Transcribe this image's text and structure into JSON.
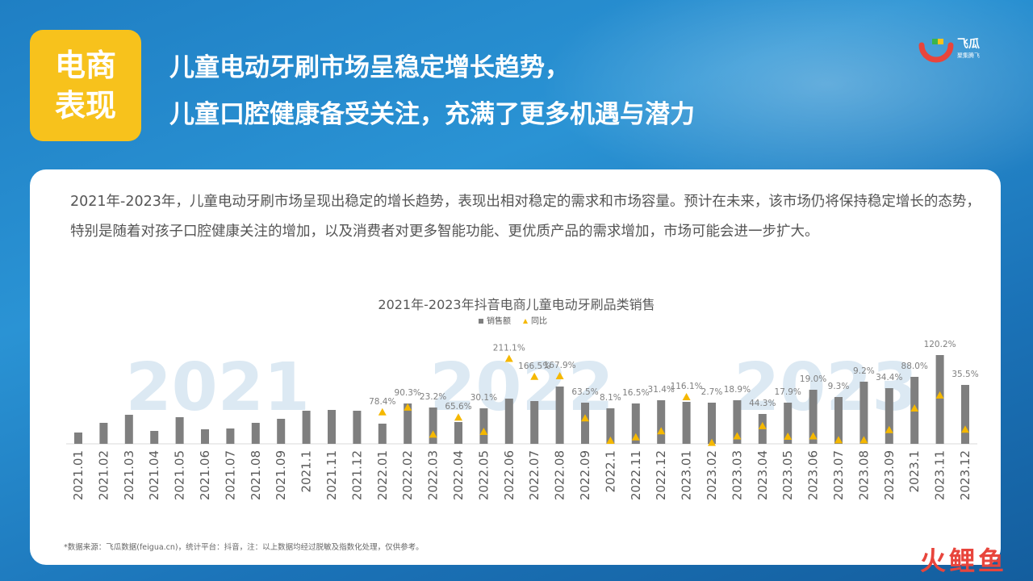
{
  "header": {
    "badge_line1": "电商",
    "badge_line2": "表现",
    "headline_line1": "儿童电动牙刷市场呈稳定增长趋势，",
    "headline_line2": "儿童口腔健康备受关注，充满了更多机遇与潜力"
  },
  "logo": {
    "name": "飞瓜",
    "tagline": "聚集腾飞"
  },
  "description": "2021年-2023年，儿童电动牙刷市场呈现出稳定的增长趋势，表现出相对稳定的需求和市场容量。预计在未来，该市场仍将保持稳定增长的态势，特别是随着对孩子口腔健康关注的增加，以及消费者对更多智能功能、更优质产品的需求增加，市场可能会进一步扩大。",
  "footnote": "*数据来源：飞瓜数据(feigua.cn)，统计平台：抖音，注：以上数据均经过脱敏及指数化处理，仅供参考。",
  "watermark": "火鲤鱼",
  "colors": {
    "bar": "#7f7f7f",
    "triangle": "#f5b800",
    "badge": "#f7c21c",
    "year_watermark": "#dce9f3"
  },
  "chart_data": {
    "type": "bar",
    "title": "2021年-2023年抖音电商儿童电动牙刷品类销售",
    "legend": [
      "销售额",
      "同比"
    ],
    "legend_position": "top-center",
    "year_watermarks": [
      "2021",
      "2022",
      "2023"
    ],
    "categories": [
      "2021.01",
      "2021.02",
      "2021.03",
      "2021.04",
      "2021.05",
      "2021.06",
      "2021.07",
      "2021.08",
      "2021.09",
      "2021.1",
      "2021.11",
      "2021.12",
      "2022.01",
      "2022.02",
      "2022.03",
      "2022.04",
      "2022.05",
      "2022.06",
      "2022.07",
      "2022.08",
      "2022.09",
      "2022.1",
      "2022.11",
      "2022.12",
      "2023.01",
      "2023.02",
      "2023.03",
      "2023.04",
      "2023.05",
      "2023.06",
      "2023.07",
      "2023.08",
      "2023.09",
      "2023.1",
      "2023.11",
      "2023.12"
    ],
    "series": [
      {
        "name": "销售额",
        "kind": "bar",
        "values": [
          14,
          26,
          36,
          16,
          33,
          18,
          19,
          26,
          31,
          41,
          42,
          41,
          25,
          50,
          45,
          27,
          44,
          56,
          53,
          71,
          51,
          44,
          50,
          54,
          52,
          51,
          54,
          37,
          51,
          67,
          58,
          77,
          69,
          83,
          110,
          73
        ]
      },
      {
        "name": "同比",
        "kind": "triangle",
        "values": [
          null,
          null,
          null,
          null,
          null,
          null,
          null,
          null,
          null,
          null,
          null,
          null,
          78.4,
          90.3,
          23.2,
          65.6,
          30.1,
          211.1,
          166.5,
          167.9,
          63.5,
          8.1,
          16.5,
          31.4,
          116.1,
          2.7,
          18.9,
          44.3,
          17.9,
          19.0,
          9.3,
          9.2,
          34.4,
          88.0,
          120.2,
          35.5
        ],
        "labels": [
          "",
          "",
          "",
          "",
          "",
          "",
          "",
          "",
          "",
          "",
          "",
          "",
          "78.4%",
          "90.3%",
          "23.2%",
          "65.6%",
          "30.1%",
          "211.1%",
          "166.5%",
          "167.9%",
          "63.5%",
          "8.1%",
          "16.5%",
          "31.4%",
          "116.1%",
          "2.7%",
          "18.9%",
          "44.3%",
          "17.9%",
          "19.0%",
          "9.3%",
          "9.2%",
          "34.4%",
          "88.0%",
          "120.2%",
          "35.5%"
        ]
      }
    ],
    "ylim": [
      0,
      115
    ],
    "y2lim": [
      0,
      230
    ],
    "grid": false
  }
}
